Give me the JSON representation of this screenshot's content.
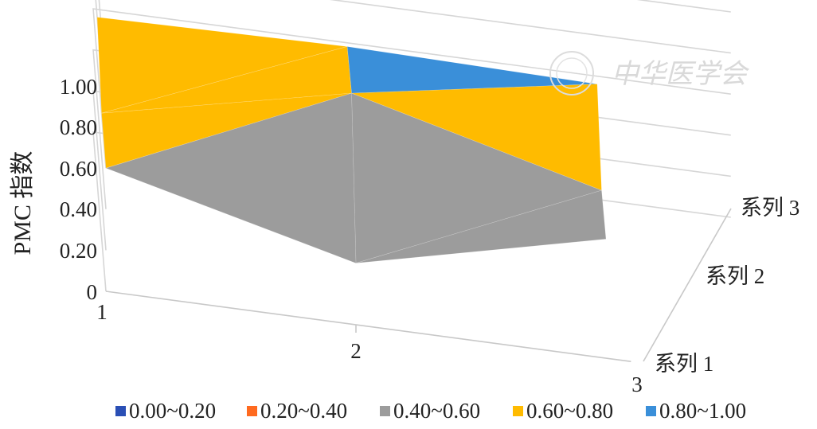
{
  "chart_data": {
    "type": "surface",
    "ylabel": "PMC 指数",
    "z_ticks": [
      "0",
      "0.20",
      "0.40",
      "0.60",
      "0.80",
      "1.00"
    ],
    "zlim": [
      0,
      1
    ],
    "x_categories": [
      "1",
      "2",
      "3"
    ],
    "series_categories": [
      "系列 1",
      "系列 2",
      "系列 3"
    ],
    "values": [
      [
        0.6,
        0.3,
        0.58
      ],
      [
        0.6,
        0.86,
        0.55
      ],
      [
        0.8,
        0.82,
        0.8
      ]
    ],
    "legend": [
      {
        "label": "0.00~0.20",
        "color": "#2a4fb5"
      },
      {
        "label": "0.20~0.40",
        "color": "#ff6a1f"
      },
      {
        "label": "0.40~0.60",
        "color": "#9c9c9c"
      },
      {
        "label": "0.60~0.80",
        "color": "#ffbb00"
      },
      {
        "label": "0.80~1.00",
        "color": "#3a8fd9"
      }
    ],
    "legend_position": "bottom",
    "watermark": "中华医学会"
  }
}
